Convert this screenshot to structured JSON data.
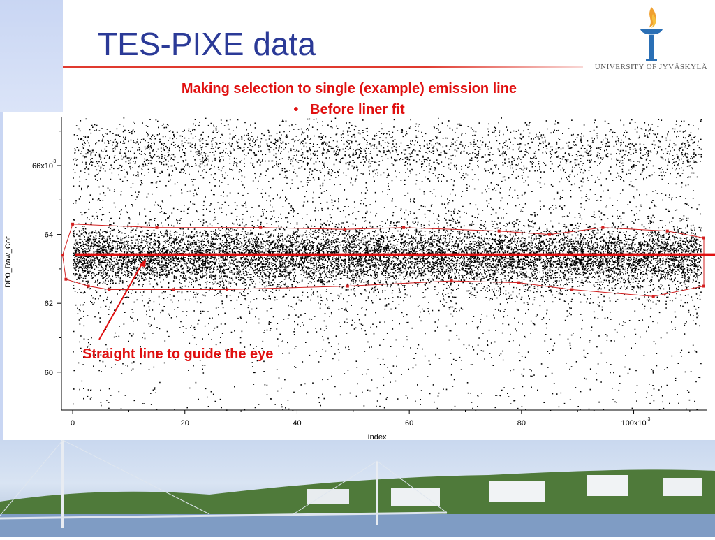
{
  "slide": {
    "title": "TES-PIXE data",
    "subtitle": "Making selection to single (example) emission line",
    "bullet": "Before liner fit",
    "annotation": "Straight line to guide the eye",
    "logo_text": "UNIVERSITY OF JYVÄSKYLÄ"
  },
  "colors": {
    "title": "#2b3a97",
    "accent_red": "#e01010",
    "points": "#000000",
    "selection": "#d32020"
  },
  "chart_data": {
    "type": "scatter",
    "title": "",
    "xlabel": "Index",
    "ylabel": "DP0_Raw_Cor",
    "x_ticks": [
      "0",
      "20",
      "40",
      "60",
      "80",
      "100x10"
    ],
    "x_tick_exponent": "3",
    "y_ticks": [
      "60",
      "62",
      "64",
      "66x10"
    ],
    "y_tick_exponent": "-3",
    "xlim": [
      -2000,
      113000
    ],
    "ylim": [
      0.0589,
      0.0674
    ],
    "grid": false,
    "scatter_band": {
      "center_y": 0.06336,
      "core_halfwidth": 0.0004,
      "secondary_band_y": 0.0664,
      "point_count_approx": 20000
    },
    "guide_line": {
      "y": 0.06341
    },
    "selection_polygon": [
      [
        -1800,
        0.0634
      ],
      [
        0,
        0.0643
      ],
      [
        15000,
        0.0642
      ],
      [
        33500,
        0.0642
      ],
      [
        48500,
        0.06415
      ],
      [
        59000,
        0.0642
      ],
      [
        76000,
        0.0641
      ],
      [
        85000,
        0.064
      ],
      [
        94500,
        0.0642
      ],
      [
        106000,
        0.0641
      ],
      [
        112500,
        0.0639
      ],
      [
        112500,
        0.0625
      ],
      [
        103500,
        0.0622
      ],
      [
        89000,
        0.0624
      ],
      [
        79500,
        0.0626
      ],
      [
        67500,
        0.06265
      ],
      [
        49000,
        0.0625
      ],
      [
        27500,
        0.0624
      ],
      [
        18000,
        0.0624
      ],
      [
        6500,
        0.0624
      ],
      [
        2800,
        0.0625
      ],
      [
        -1200,
        0.0627
      ]
    ]
  }
}
